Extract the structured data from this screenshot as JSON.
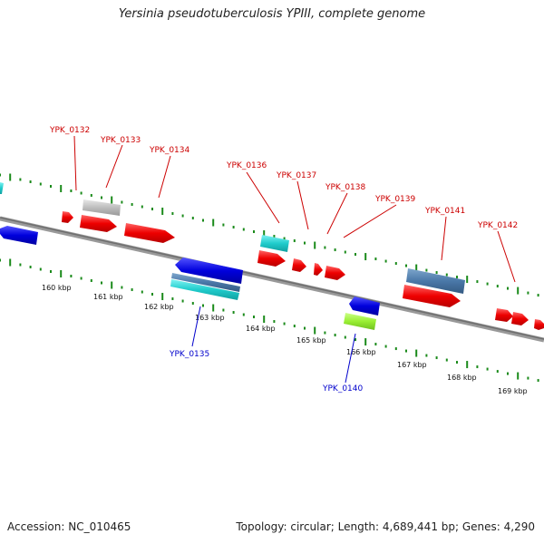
{
  "title": "Yersinia pseudotuberculosis YPIII, complete genome",
  "footer": {
    "accession": "Accession: NC_010465",
    "topology": "Topology: circular; Length: 4,689,441 bp; Genes: 4,290"
  },
  "kbp_labels": [
    "160 kbp",
    "161 kbp",
    "162 kbp",
    "163 kbp",
    "164 kbp",
    "165 kbp",
    "166 kbp",
    "167 kbp",
    "168 kbp",
    "169 kbp"
  ],
  "gene_labels_above": [
    "YPK_0132",
    "YPK_0133",
    "YPK_0134",
    "YPK_0136",
    "YPK_0137",
    "YPK_0138",
    "YPK_0139",
    "YPK_0141",
    "YPK_0142"
  ],
  "gene_labels_below": [
    "YPK_0135",
    "YPK_0140"
  ],
  "colors": {
    "label_red": "#cc0000",
    "label_blue": "#0000cc",
    "tick_green": "#1a8a1a",
    "backbone": "#888888"
  }
}
